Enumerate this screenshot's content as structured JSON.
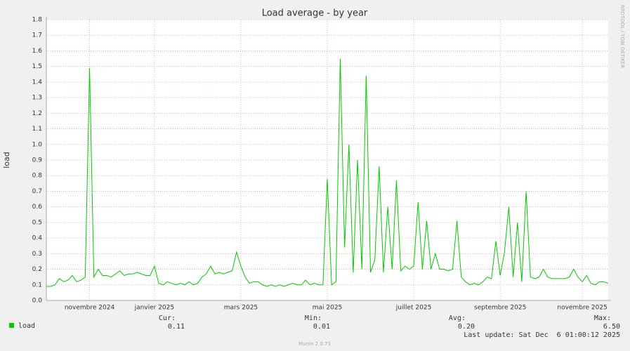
{
  "chart_data": {
    "type": "line",
    "title": "Load average - by year",
    "y_label": "load",
    "side_label": "RRDTOOL / TOBI OETIKER",
    "footer": "Munin 2.0.73",
    "categories": [
      null,
      null,
      null,
      null,
      null,
      null,
      null,
      null,
      null,
      null,
      "novembre 2024",
      null,
      null,
      null,
      null,
      null,
      null,
      null,
      null,
      null,
      null,
      null,
      null,
      null,
      null,
      "janvier 2025",
      null,
      null,
      null,
      null,
      null,
      null,
      null,
      null,
      null,
      null,
      null,
      null,
      null,
      null,
      null,
      null,
      null,
      null,
      null,
      "mars 2025",
      null,
      null,
      null,
      null,
      null,
      null,
      null,
      null,
      null,
      null,
      null,
      null,
      null,
      null,
      null,
      null,
      null,
      null,
      null,
      "mai 2025",
      null,
      null,
      null,
      null,
      null,
      null,
      null,
      null,
      null,
      null,
      null,
      null,
      null,
      null,
      null,
      null,
      null,
      null,
      null,
      "juillet 2025",
      null,
      null,
      null,
      null,
      null,
      null,
      null,
      null,
      null,
      null,
      null,
      null,
      null,
      null,
      null,
      null,
      null,
      null,
      null,
      "septembre 2025",
      null,
      null,
      null,
      null,
      null,
      null,
      null,
      null,
      null,
      null,
      null,
      null,
      null,
      null,
      null,
      null,
      null,
      null,
      "novembre 2025",
      null,
      null,
      null,
      null,
      null,
      null
    ],
    "series": [
      {
        "name": "load",
        "color": "#00cc00",
        "values": [
          0.09,
          0.09,
          0.1,
          0.14,
          0.12,
          0.13,
          0.16,
          0.12,
          0.13,
          0.15,
          1.49,
          0.15,
          0.2,
          0.16,
          0.16,
          0.15,
          0.17,
          0.19,
          0.16,
          0.17,
          0.17,
          0.18,
          0.17,
          0.16,
          0.16,
          0.22,
          0.11,
          0.1,
          0.12,
          0.11,
          0.1,
          0.11,
          0.1,
          0.12,
          0.1,
          0.11,
          0.15,
          0.17,
          0.22,
          0.17,
          0.18,
          0.17,
          0.18,
          0.19,
          0.31,
          0.22,
          0.15,
          0.11,
          0.12,
          0.12,
          0.1,
          0.09,
          0.1,
          0.09,
          0.1,
          0.09,
          0.1,
          0.11,
          0.1,
          0.1,
          0.13,
          0.1,
          0.11,
          0.1,
          0.1,
          0.78,
          0.1,
          0.12,
          1.55,
          0.34,
          1.0,
          0.18,
          0.9,
          0.2,
          1.44,
          0.18,
          0.26,
          0.86,
          0.18,
          0.6,
          0.2,
          0.77,
          0.19,
          0.22,
          0.2,
          0.22,
          0.63,
          0.2,
          0.51,
          0.2,
          0.3,
          0.2,
          0.2,
          0.19,
          0.2,
          0.51,
          0.15,
          0.12,
          0.1,
          0.11,
          0.1,
          0.12,
          0.15,
          0.14,
          0.38,
          0.16,
          0.31,
          0.6,
          0.15,
          0.5,
          0.12,
          0.7,
          0.15,
          0.14,
          0.15,
          0.2,
          0.15,
          0.14,
          0.14,
          0.14,
          0.14,
          0.15,
          0.2,
          0.15,
          0.12,
          0.16,
          0.11,
          0.1,
          0.12,
          0.12,
          0.11
        ]
      }
    ],
    "ylim": [
      0,
      1.8
    ],
    "yticks": [
      {
        "value": 0,
        "label": "0.0"
      },
      0.1,
      0.2,
      0.3,
      0.4,
      0.5,
      0.6,
      0.7,
      0.8,
      0.9,
      {
        "value": 1,
        "label": "1.0"
      },
      1.1,
      1.2,
      1.3,
      1.4,
      1.5,
      1.6,
      1.7,
      1.8
    ],
    "grid": true,
    "summary": {
      "cur_label": "Cur:",
      "cur": "0.11",
      "min_label": "Min:",
      "min": "0.01",
      "avg_label": "Avg:",
      "avg": "0.20",
      "max_label": "Max:",
      "max": "6.50",
      "last_update": "Last update: Sat Dec  6 01:00:12 2025"
    }
  }
}
